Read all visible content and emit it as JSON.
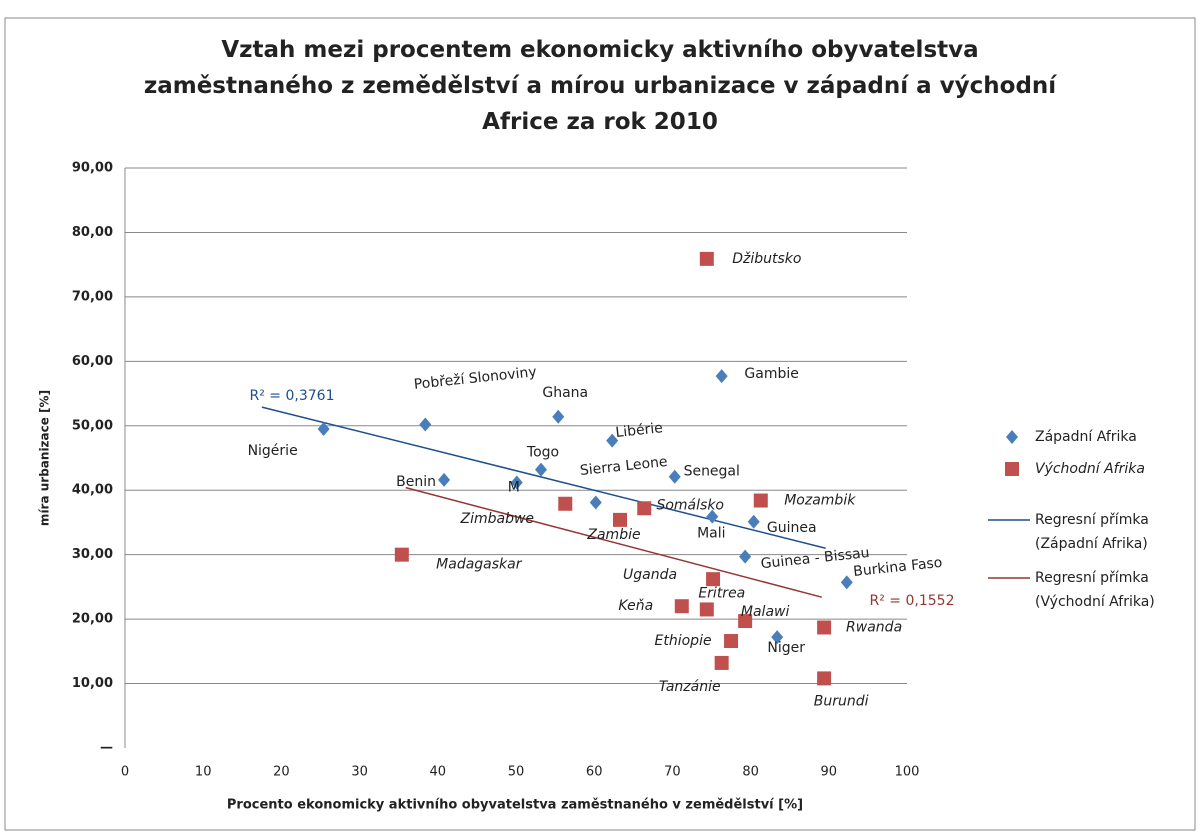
{
  "chart_data": {
    "type": "scatter",
    "title": "Vztah mezi procentem ekonomicky aktivního obyvatelstva zaměstnaného z zemědělství a mírou urbanizace v západní a východní Africe za rok 2010",
    "x_label": "Procento ekonomicky aktivního obyvatelstva zaměstnaného v zemědělství [%]",
    "y_label": "míra urbanizace [%]",
    "xlim": [
      0,
      100
    ],
    "xticks": [
      0,
      10,
      20,
      30,
      40,
      50,
      60,
      70,
      80,
      90,
      100
    ],
    "ylim": [
      0,
      90
    ],
    "yticks": [
      {
        "value": 0,
        "label": "—"
      },
      {
        "value": 10,
        "label": "10,00"
      },
      {
        "value": 20,
        "label": "20,00"
      },
      {
        "value": 30,
        "label": "30,00"
      },
      {
        "value": 40,
        "label": "40,00"
      },
      {
        "value": 50,
        "label": "50,00"
      },
      {
        "value": 60,
        "label": "60,00"
      },
      {
        "value": 70,
        "label": "70,00"
      },
      {
        "value": 80,
        "label": "80,00"
      },
      {
        "value": 90,
        "label": "90,00"
      }
    ],
    "grid": true,
    "legend": "right",
    "series": [
      {
        "name": "Západní Afrika",
        "color": "#4a7ebb",
        "marker": "diamond",
        "labels": [
          "Nigérie",
          "Pobřeží Slonoviny",
          "Ghana",
          "Libérie",
          "Togo",
          "Benin",
          "M",
          "Sierra Leone",
          "Senegal",
          "Mali",
          "Guinea",
          "Guinea - Bissau",
          "Burkina Faso",
          "Gambie",
          "Niger"
        ],
        "x": [
          25.4,
          38.4,
          55.4,
          62.3,
          53.2,
          40.8,
          50.1,
          60.2,
          70.3,
          75.1,
          80.4,
          79.3,
          92.3,
          76.3,
          83.4
        ],
        "values": [
          49.5,
          50.2,
          51.4,
          47.7,
          43.2,
          41.6,
          41.2,
          38.1,
          42.1,
          35.9,
          35.1,
          29.7,
          25.7,
          57.7,
          17.2
        ]
      },
      {
        "name": "Východní Afrika",
        "color": "#c0504d",
        "marker": "square",
        "labels": [
          "Džibutsko",
          "Mozambik",
          "Somálsko",
          "Zimbabwe",
          "Zambie",
          "Madagaskar",
          "Uganda",
          "Eritrea",
          "Keňa",
          "Malawi",
          "Ethiopie",
          "Tanzánie",
          "Rwanda",
          "Burundi"
        ],
        "x": [
          74.4,
          81.3,
          66.4,
          56.3,
          63.3,
          35.4,
          75.2,
          74.4,
          71.2,
          79.3,
          77.5,
          76.3,
          89.4,
          89.4
        ],
        "values": [
          75.9,
          38.4,
          37.2,
          37.9,
          35.4,
          30.0,
          26.2,
          21.5,
          22.0,
          19.7,
          16.6,
          13.2,
          18.7,
          10.8
        ]
      }
    ],
    "trendlines": [
      {
        "name": "Regresní přímka (Západní Afrika)",
        "color": "#1f4e8c",
        "x": [
          17.5,
          89.6
        ],
        "values": [
          52.9,
          31.0
        ],
        "r2": "R² = 0,3761"
      },
      {
        "name": "Regresní přímka (Východní Afrika)",
        "color": "#943634",
        "x": [
          35.9,
          89.1
        ],
        "values": [
          40.4,
          23.4
        ],
        "r2": "R² = 0,1552"
      }
    ]
  }
}
